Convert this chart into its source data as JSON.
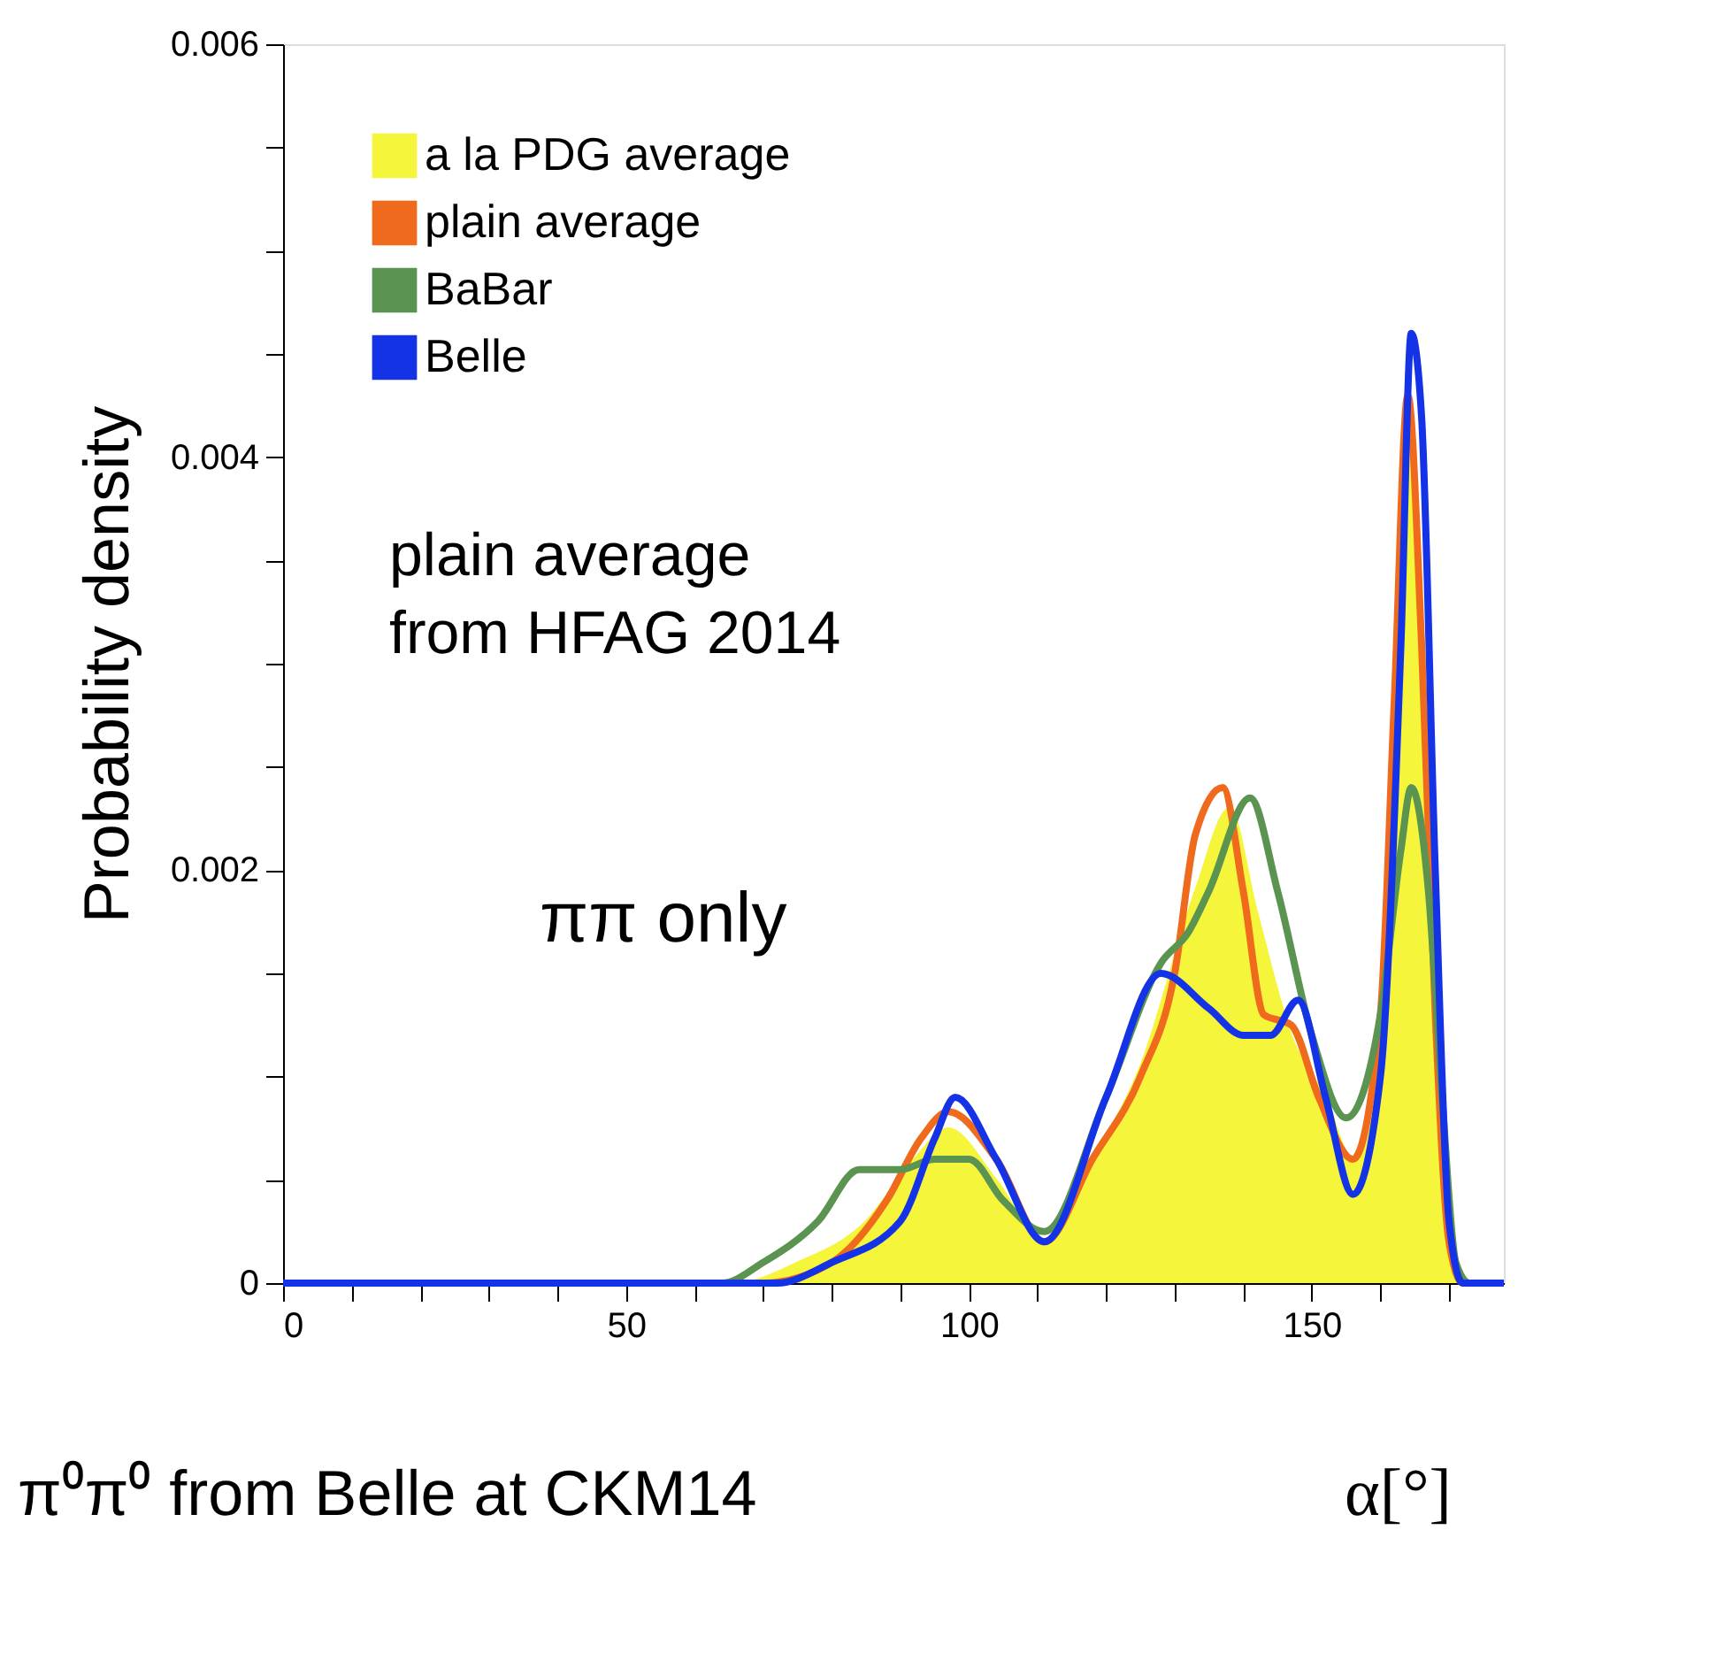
{
  "chart_data": {
    "type": "line",
    "xlabel": "α[°]",
    "ylabel": "Probability density",
    "xlim": [
      0,
      178
    ],
    "ylim": [
      0,
      0.006
    ],
    "xticks": [
      0,
      {
        "value": 10,
        "label": null
      },
      {
        "value": 20,
        "label": null
      },
      {
        "value": 30,
        "label": null
      },
      {
        "value": 40,
        "label": null
      },
      50,
      {
        "value": 60,
        "label": null
      },
      {
        "value": 70,
        "label": null
      },
      {
        "value": 80,
        "label": null
      },
      {
        "value": 90,
        "label": null
      },
      100,
      {
        "value": 110,
        "label": null
      },
      {
        "value": 120,
        "label": null
      },
      {
        "value": 130,
        "label": null
      },
      {
        "value": 140,
        "label": null
      },
      150,
      {
        "value": 160,
        "label": null
      },
      {
        "value": 170,
        "label": null
      }
    ],
    "yticks": [
      0,
      {
        "value": 0.0005,
        "label": null
      },
      {
        "value": 0.001,
        "label": null
      },
      {
        "value": 0.0015,
        "label": null
      },
      0.002,
      {
        "value": 0.0025,
        "label": null
      },
      {
        "value": 0.003,
        "label": null
      },
      {
        "value": 0.0035,
        "label": null
      },
      0.004,
      {
        "value": 0.0045,
        "label": null
      },
      {
        "value": 0.005,
        "label": null
      },
      {
        "value": 0.0055,
        "label": null
      },
      0.006
    ],
    "grid": false,
    "legend": "top left",
    "series": [
      {
        "name": "a la PDG average",
        "type": "area",
        "color": "#f5f53c",
        "x": [
          0,
          66,
          75,
          85,
          92,
          97,
          104,
          111,
          118,
          125,
          133,
          138,
          142,
          147,
          152,
          156,
          160,
          162,
          164,
          166,
          168,
          170,
          172,
          178
        ],
        "values": [
          0,
          0,
          0.0001,
          0.0003,
          0.0006,
          0.00075,
          0.0005,
          0.0002,
          0.0006,
          0.00105,
          0.0019,
          0.0023,
          0.0018,
          0.0012,
          0.0009,
          0.0006,
          0.0013,
          0.0025,
          0.0042,
          0.0033,
          0.0013,
          0.0003,
          0,
          0
        ]
      },
      {
        "name": "plain average",
        "color": "#f06a1e",
        "x": [
          0,
          70,
          80,
          88,
          93,
          97,
          104,
          111,
          118,
          125,
          130,
          133,
          137,
          140,
          143,
          147,
          151,
          156,
          160,
          162,
          164,
          166,
          168,
          170,
          172,
          178
        ],
        "values": [
          0,
          0,
          0.0001,
          0.0004,
          0.0007,
          0.00083,
          0.0006,
          0.0002,
          0.0006,
          0.001,
          0.0015,
          0.00217,
          0.0024,
          0.0019,
          0.0013,
          0.00125,
          0.0009,
          0.0006,
          0.0013,
          0.0028,
          0.0043,
          0.0031,
          0.0013,
          0.0002,
          0,
          0
        ]
      },
      {
        "name": "BaBar",
        "color": "#5a9450",
        "x": [
          0,
          64,
          70,
          78,
          84,
          90,
          95,
          100,
          105,
          111,
          120,
          128,
          132,
          135,
          141,
          145,
          150,
          155,
          160,
          163,
          164.5,
          167,
          169,
          171,
          173,
          178
        ],
        "values": [
          0,
          0,
          0.0001,
          0.0003,
          0.00055,
          0.00055,
          0.0006,
          0.0006,
          0.0004,
          0.00025,
          0.0009,
          0.00155,
          0.0017,
          0.0019,
          0.00235,
          0.0019,
          0.0012,
          0.0008,
          0.0013,
          0.0021,
          0.0024,
          0.0019,
          0.0009,
          0.0001,
          0,
          0
        ]
      },
      {
        "name": "Belle",
        "color": "#1432e6",
        "x": [
          0,
          72,
          80,
          90,
          95,
          98,
          104,
          111,
          120,
          128,
          135,
          140,
          144,
          148,
          152,
          156,
          160,
          163,
          164.5,
          166,
          168,
          170,
          172,
          178
        ],
        "values": [
          0,
          0,
          0.0001,
          0.0003,
          0.0007,
          0.0009,
          0.0006,
          0.0002,
          0.0009,
          0.0015,
          0.00133,
          0.0012,
          0.0012,
          0.00137,
          0.0009,
          0.00043,
          0.001,
          0.0031,
          0.0046,
          0.0042,
          0.002,
          0.0003,
          0,
          0
        ]
      }
    ],
    "annotations": [
      "plain average\nfrom HFAG 2014",
      "ππ only",
      "π⁰π⁰ from Belle at CKM14"
    ]
  }
}
